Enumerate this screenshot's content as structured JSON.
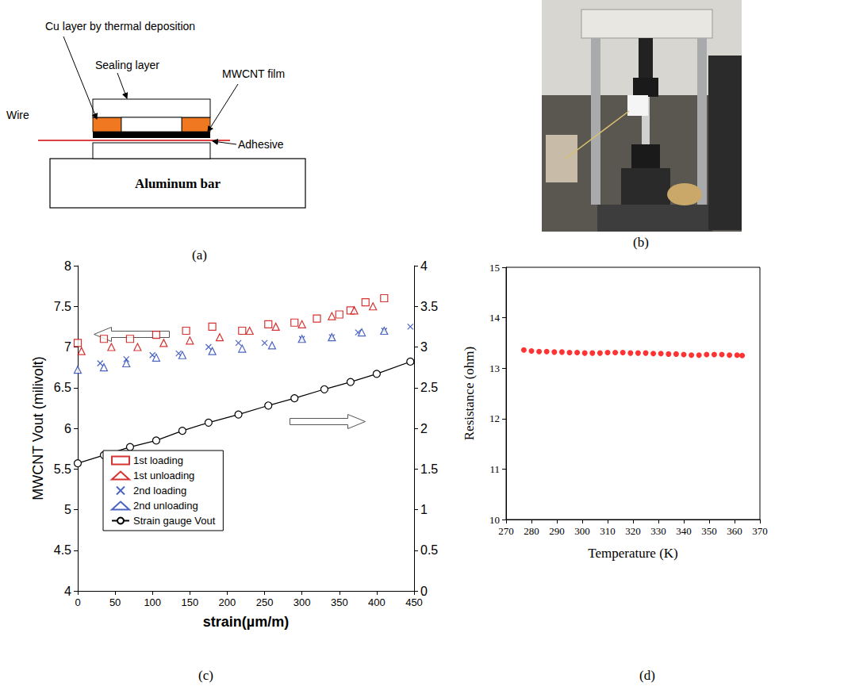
{
  "panel_labels": [
    "(a)",
    "(b)",
    "(c)",
    "(d)"
  ],
  "diagram": {
    "labels": {
      "cu_layer": "Cu layer by thermal deposition",
      "sealing": "Sealing layer",
      "film": "MWCNT film",
      "wire": "Wire",
      "adhesive": "Adhesive",
      "bar": "Aluminum bar"
    }
  },
  "chart_data": [
    {
      "type": "scatter",
      "x_label": "strain(µm/m)",
      "y_label": "MWCNT Vout (milivolt)",
      "xlim": [
        0,
        450
      ],
      "xticks": [
        0,
        50,
        100,
        150,
        200,
        250,
        300,
        350,
        400,
        450
      ],
      "ylim": [
        4,
        8
      ],
      "yticks": [
        4,
        4.5,
        5,
        5.5,
        6,
        6.5,
        7,
        7.5,
        8
      ],
      "y2lim": [
        0,
        4
      ],
      "y2ticks": [
        0,
        0.5,
        1,
        1.5,
        2,
        2.5,
        3,
        3.5,
        4
      ],
      "grid": false,
      "legend": "lower left",
      "series": [
        {
          "name": "1st loading",
          "color": "#cc0000",
          "marker": "square",
          "x": [
            0,
            35,
            70,
            105,
            145,
            180,
            220,
            255,
            290,
            320,
            350,
            365,
            385,
            410
          ],
          "values": [
            7.05,
            7.1,
            7.1,
            7.15,
            7.2,
            7.25,
            7.2,
            7.28,
            7.3,
            7.35,
            7.4,
            7.45,
            7.55,
            7.6
          ]
        },
        {
          "name": "1st unloading",
          "color": "#cc0000",
          "marker": "triangle",
          "x": [
            5,
            45,
            80,
            115,
            150,
            190,
            230,
            265,
            300,
            340,
            370,
            395
          ],
          "values": [
            6.95,
            7.0,
            7.0,
            7.05,
            7.08,
            7.12,
            7.2,
            7.25,
            7.28,
            7.38,
            7.45,
            7.5
          ]
        },
        {
          "name": "2nd loading",
          "color": "#1f3fb0",
          "marker": "x",
          "x": [
            30,
            65,
            100,
            135,
            175,
            215,
            250,
            300,
            340,
            375,
            410,
            445
          ],
          "values": [
            6.8,
            6.85,
            6.9,
            6.92,
            7.0,
            7.05,
            7.05,
            7.1,
            7.12,
            7.18,
            7.2,
            7.25
          ]
        },
        {
          "name": "2nd unloading",
          "color": "#1f3fb0",
          "marker": "triangle",
          "x": [
            0,
            35,
            65,
            105,
            140,
            180,
            220,
            260,
            300,
            340,
            380,
            410
          ],
          "values": [
            6.72,
            6.75,
            6.8,
            6.87,
            6.9,
            6.95,
            6.98,
            7.02,
            7.1,
            7.12,
            7.18,
            7.2
          ]
        },
        {
          "name": "Strain gauge Vout",
          "color": "#000000",
          "marker": "circle",
          "type": "line",
          "axis": "y2",
          "x": [
            0,
            35,
            70,
            105,
            140,
            175,
            215,
            255,
            290,
            330,
            365,
            400,
            445
          ],
          "values": [
            1.57,
            1.67,
            1.77,
            1.85,
            1.97,
            2.07,
            2.17,
            2.28,
            2.37,
            2.48,
            2.57,
            2.67,
            2.82
          ]
        }
      ]
    },
    {
      "type": "scatter",
      "x_label": "Temperature (K)",
      "y_label": "Resistance (ohm)",
      "xlim": [
        270,
        370
      ],
      "xticks": [
        270,
        280,
        290,
        300,
        310,
        320,
        330,
        340,
        350,
        360,
        370
      ],
      "ylim": [
        10,
        15
      ],
      "yticks": [
        10,
        11,
        12,
        13,
        14,
        15
      ],
      "grid": false,
      "color": "#ff0000",
      "marker": "circle",
      "x": [
        277,
        280,
        283,
        286,
        289,
        292,
        295,
        298,
        301,
        304,
        307,
        310,
        313,
        316,
        319,
        322,
        325,
        328,
        331,
        334,
        337,
        340,
        343,
        346,
        349,
        352,
        355,
        358,
        361,
        363
      ],
      "values": [
        13.36,
        13.34,
        13.33,
        13.33,
        13.32,
        13.32,
        13.31,
        13.31,
        13.3,
        13.3,
        13.3,
        13.31,
        13.31,
        13.31,
        13.3,
        13.3,
        13.3,
        13.29,
        13.29,
        13.28,
        13.28,
        13.27,
        13.26,
        13.26,
        13.27,
        13.27,
        13.27,
        13.26,
        13.26,
        13.25
      ]
    }
  ]
}
